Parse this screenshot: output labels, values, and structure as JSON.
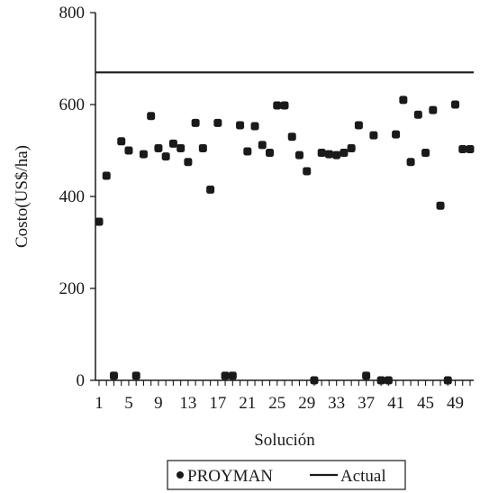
{
  "chart_data": {
    "type": "scatter",
    "xlabel": "Solución",
    "ylabel": "Costo(US$/ha)",
    "ylim": [
      0,
      800
    ],
    "xlim": [
      1,
      51
    ],
    "y_ticks": [
      0,
      200,
      400,
      600,
      800
    ],
    "x_ticks": [
      1,
      5,
      9,
      13,
      17,
      21,
      25,
      29,
      33,
      37,
      41,
      45,
      49
    ],
    "grid": false,
    "legend_position": "bottom-center",
    "legend_entries": [
      "PROYMAN",
      "Actual"
    ],
    "series": [
      {
        "name": "PROYMAN",
        "style": "markers",
        "color": "#1a1a1a",
        "x": [
          1,
          2,
          3,
          4,
          5,
          6,
          7,
          8,
          9,
          10,
          11,
          12,
          13,
          14,
          15,
          16,
          17,
          18,
          19,
          20,
          21,
          22,
          23,
          24,
          25,
          26,
          27,
          28,
          29,
          30,
          31,
          32,
          33,
          34,
          35,
          36,
          37,
          38,
          39,
          40,
          41,
          42,
          43,
          44,
          45,
          46,
          47,
          48,
          49,
          50,
          51
        ],
        "y": [
          345,
          445,
          10,
          520,
          500,
          10,
          492,
          575,
          505,
          487,
          515,
          505,
          475,
          560,
          505,
          415,
          560,
          10,
          10,
          555,
          498,
          553,
          512,
          495,
          598,
          598,
          530,
          490,
          455,
          0,
          495,
          492,
          490,
          495,
          505,
          555,
          10,
          533,
          0,
          0,
          535,
          610,
          475,
          578,
          495,
          588,
          380,
          0,
          600,
          503,
          503
        ]
      },
      {
        "name": "Actual",
        "style": "line",
        "color": "#1a1a1a",
        "x": [
          1,
          51
        ],
        "y": [
          670,
          670
        ]
      }
    ]
  }
}
